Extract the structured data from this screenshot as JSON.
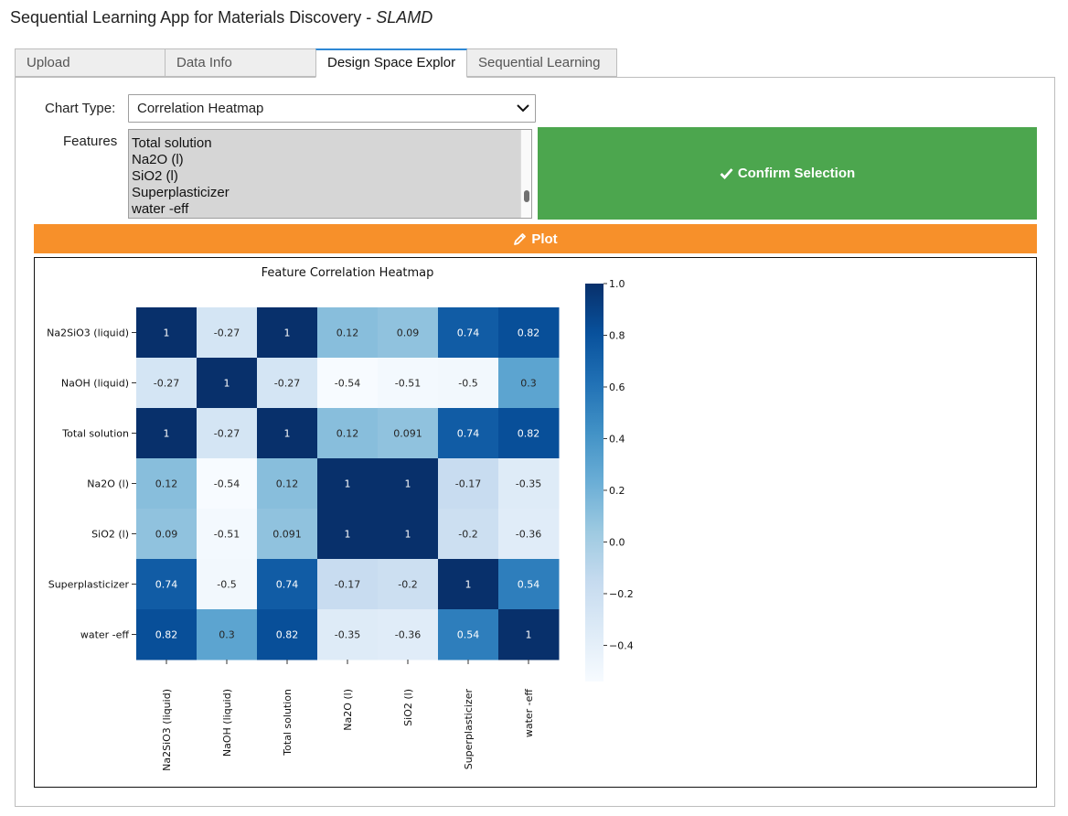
{
  "app": {
    "title": "Sequential Learning App for Materials Discovery - ",
    "subtitle": "SLAMD"
  },
  "tabs": [
    {
      "label": "Upload",
      "active": false
    },
    {
      "label": "Data Info",
      "active": false
    },
    {
      "label": "Design Space Explor",
      "active": true
    },
    {
      "label": "Sequential Learning",
      "active": false
    }
  ],
  "controls": {
    "chart_type_label": "Chart Type:",
    "chart_type_value": "Correlation Heatmap",
    "features_label": "Features",
    "features_options": [
      "Total solution",
      "Na2O (l)",
      "SiO2 (l)",
      "Superplasticizer",
      "water -eff"
    ],
    "confirm_label": "Confirm Selection",
    "plot_label": "Plot",
    "icons": {
      "select": "chevron-down-icon",
      "confirm": "check-icon",
      "plot": "pencil-icon"
    }
  },
  "colors": {
    "confirm": "#4ca64e",
    "plot": "#f7902a",
    "active_tab_accent": "#2e88d4"
  },
  "chart_data": {
    "type": "heatmap",
    "title": "Feature Correlation Heatmap",
    "rows": [
      "Na2SiO3 (liquid)",
      "NaOH (liquid)",
      "Total solution",
      "Na2O (l)",
      "SiO2 (l)",
      "Superplasticizer",
      "water -eff"
    ],
    "cols": [
      "Na2SiO3 (liquid)",
      "NaOH (liquid)",
      "Total solution",
      "Na2O (l)",
      "SiO2 (l)",
      "Superplasticizer",
      "water -eff"
    ],
    "values": [
      [
        1,
        -0.27,
        1,
        0.12,
        0.09,
        0.74,
        0.82
      ],
      [
        -0.27,
        1,
        -0.27,
        -0.54,
        -0.51,
        -0.5,
        0.3
      ],
      [
        1,
        -0.27,
        1,
        0.12,
        0.091,
        0.74,
        0.82
      ],
      [
        0.12,
        -0.54,
        0.12,
        1,
        1,
        -0.17,
        -0.35
      ],
      [
        0.09,
        -0.51,
        0.091,
        1,
        1,
        -0.2,
        -0.36
      ],
      [
        0.74,
        -0.5,
        0.74,
        -0.17,
        -0.2,
        1,
        0.54
      ],
      [
        0.82,
        0.3,
        0.82,
        -0.35,
        -0.36,
        0.54,
        1
      ]
    ],
    "labels": [
      [
        "1",
        "-0.27",
        "1",
        "0.12",
        "0.09",
        "0.74",
        "0.82"
      ],
      [
        "-0.27",
        "1",
        "-0.27",
        "-0.54",
        "-0.51",
        "-0.5",
        "0.3"
      ],
      [
        "1",
        "-0.27",
        "1",
        "0.12",
        "0.091",
        "0.74",
        "0.82"
      ],
      [
        "0.12",
        "-0.54",
        "0.12",
        "1",
        "1",
        "-0.17",
        "-0.35"
      ],
      [
        "0.09",
        "-0.51",
        "0.091",
        "1",
        "1",
        "-0.2",
        "-0.36"
      ],
      [
        "0.74",
        "-0.5",
        "0.74",
        "-0.17",
        "-0.2",
        "1",
        "0.54"
      ],
      [
        "0.82",
        "0.3",
        "0.82",
        "-0.35",
        "-0.36",
        "0.54",
        "1"
      ]
    ],
    "colorbar": {
      "min": -0.54,
      "max": 1.0,
      "ticks": [
        1.0,
        0.8,
        0.6,
        0.4,
        0.2,
        0.0,
        -0.2,
        -0.4
      ],
      "tick_labels": [
        "1.0",
        "0.8",
        "0.6",
        "0.4",
        "0.2",
        "0.0",
        "−0.2",
        "−0.4"
      ],
      "colormap": "Blues"
    },
    "grid": false
  }
}
